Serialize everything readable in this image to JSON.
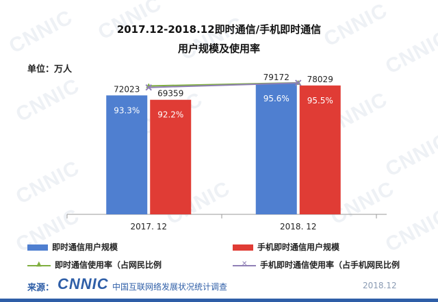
{
  "title_line1": "2017.12-2018.12即时通信/手机即时通信",
  "title_line2": "用户规模及使用率",
  "unit_label": "单位：万人",
  "watermark_text": "CNNIC",
  "colors": {
    "blue": "#4f7fd0",
    "red": "#e03c35",
    "green": "#7fae3f",
    "purple": "#8f7fb5",
    "brand": "#2e5ea7"
  },
  "chart_data": {
    "type": "bar",
    "categories": [
      "2017. 12",
      "2018. 12"
    ],
    "ylim": [
      0,
      85000
    ],
    "rate_lim": [
      0,
      102
    ],
    "series": [
      {
        "name": "即时通信用户规模",
        "kind": "bar",
        "color": "#4f7fd0",
        "values": [
          72023,
          79172
        ],
        "bar_labels": [
          "93.3%",
          "95.6%"
        ]
      },
      {
        "name": "手机即时通信用户规模",
        "kind": "bar",
        "color": "#e03c35",
        "values": [
          69359,
          78029
        ],
        "bar_labels": [
          "92.2%",
          "95.5%"
        ]
      },
      {
        "name": "即时通信使用率（占网民比例",
        "kind": "line",
        "color": "#7fae3f",
        "values": [
          93.3,
          95.6
        ]
      },
      {
        "name": "手机即时通信使用率（占手机网民比例",
        "kind": "line",
        "color": "#8f7fb5",
        "values": [
          92.2,
          95.5
        ]
      }
    ],
    "value_labels": [
      [
        "72023",
        "69359"
      ],
      [
        "79172",
        "78029"
      ]
    ]
  },
  "legend": {
    "item1": "即时通信用户规模",
    "item2": "手机即时通信用户规模",
    "item3": "即时通信使用率（占网民比例",
    "item4": "手机即时通信使用率（占手机网民比例"
  },
  "source": {
    "label": "来源：",
    "logo": "CNNIC",
    "org": "中国互联网络发展状况统计调查",
    "date": "2018.12"
  }
}
